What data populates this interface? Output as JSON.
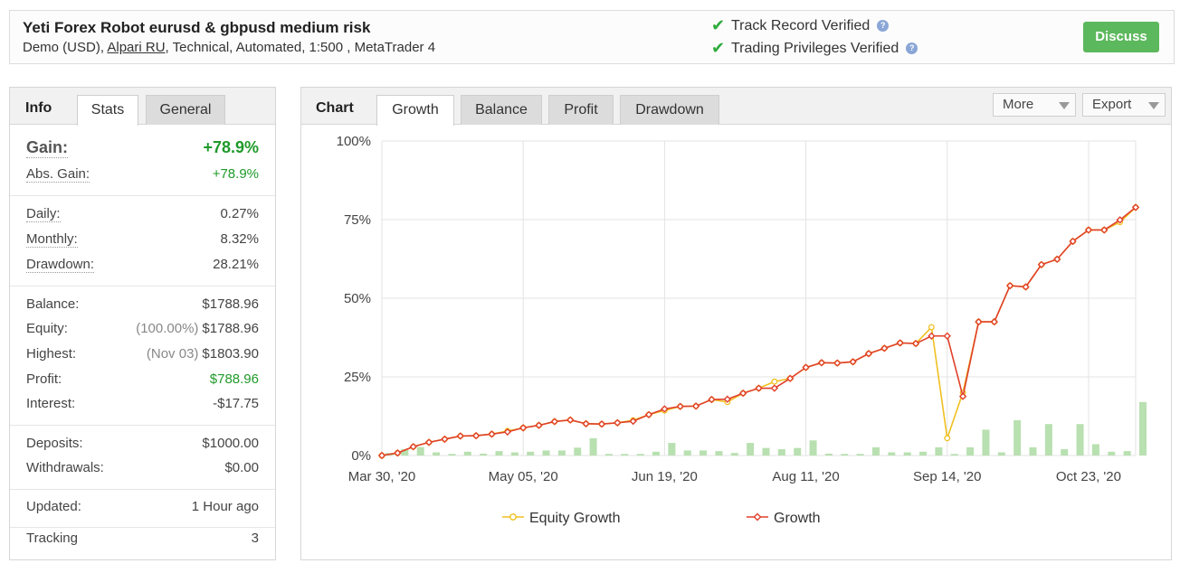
{
  "header": {
    "title": "Yeti Forex Robot eurusd & gbpusd medium risk",
    "subtitle_pre": "Demo (USD), ",
    "broker": "Alpari RU",
    "subtitle_post": ", Technical, Automated, 1:500 , MetaTrader 4",
    "verified_track": "Track Record Verified",
    "verified_trading": "Trading Privileges Verified",
    "discuss_label": "Discuss"
  },
  "info": {
    "tab_head": "Info",
    "tabs": [
      "Stats",
      "General"
    ],
    "gain_label": "Gain:",
    "gain_value": "+78.9%",
    "abs_gain_label": "Abs. Gain:",
    "abs_gain_value": "+78.9%",
    "daily_label": "Daily:",
    "daily_value": "0.27%",
    "monthly_label": "Monthly:",
    "monthly_value": "8.32%",
    "drawdown_label": "Drawdown:",
    "drawdown_value": "28.21%",
    "balance_label": "Balance:",
    "balance_value": "$1788.96",
    "equity_label": "Equity:",
    "equity_pre": "(100.00%)",
    "equity_value": "$1788.96",
    "highest_label": "Highest:",
    "highest_pre": "(Nov 03)",
    "highest_value": "$1803.90",
    "profit_label": "Profit:",
    "profit_value": "$788.96",
    "interest_label": "Interest:",
    "interest_value": "-$17.75",
    "deposits_label": "Deposits:",
    "deposits_value": "$1000.00",
    "withdrawals_label": "Withdrawals:",
    "withdrawals_value": "$0.00",
    "updated_label": "Updated:",
    "updated_value": "1 Hour ago",
    "tracking_label": "Tracking",
    "tracking_value": "3"
  },
  "chart_panel": {
    "tab_head": "Chart",
    "tabs": [
      "Growth",
      "Balance",
      "Profit",
      "Drawdown"
    ],
    "more_label": "More",
    "export_label": "Export"
  },
  "colors": {
    "growth": "#e0402a",
    "equity": "#f0c020",
    "bars": "#b8e0b0",
    "positive": "#1f9a2a",
    "discuss": "#5cb85c"
  },
  "chart_data": {
    "type": "line",
    "ylim": [
      0,
      100
    ],
    "y_ticks": [
      "0%",
      "25%",
      "50%",
      "75%",
      "100%"
    ],
    "x_tick_labels": [
      "Mar 30, '20",
      "May 05, '20",
      "Jun 19, '20",
      "Aug 11, '20",
      "Sep 14, '20",
      "Oct 23, '20"
    ],
    "x_tick_index": [
      0,
      9,
      18,
      27,
      36,
      45
    ],
    "legend": [
      "Equity Growth",
      "Growth"
    ],
    "legend_position": "bottom",
    "grid": true,
    "series": [
      {
        "name": "Growth",
        "values": [
          0,
          0.8,
          2.8,
          4.2,
          5.2,
          6.2,
          6.3,
          6.8,
          7.5,
          8.8,
          9.6,
          10.8,
          11.3,
          10.1,
          10.0,
          10.4,
          10.9,
          13.0,
          14.8,
          15.6,
          15.7,
          17.8,
          17.9,
          19.8,
          21.4,
          21.4,
          24.5,
          28.0,
          29.5,
          29.4,
          29.8,
          32.4,
          34.1,
          35.8,
          35.6,
          38.0,
          38.0,
          18.8,
          42.5,
          42.5,
          54.0,
          53.6,
          60.7,
          62.4,
          68.1,
          71.7,
          71.7,
          74.9,
          78.9
        ]
      },
      {
        "name": "Equity Growth",
        "values": [
          0,
          0.8,
          2.8,
          4.2,
          5.2,
          6.2,
          6.3,
          6.8,
          7.8,
          8.8,
          9.6,
          10.8,
          11.3,
          10.1,
          10.0,
          10.4,
          11.2,
          13.0,
          14.3,
          15.6,
          15.7,
          17.8,
          17.0,
          19.8,
          21.4,
          23.5,
          24.5,
          28.0,
          29.5,
          29.4,
          29.8,
          32.4,
          34.1,
          35.8,
          35.6,
          40.8,
          5.5,
          20.0,
          42.5,
          42.5,
          54.0,
          53.6,
          60.7,
          62.4,
          68.1,
          71.7,
          71.7,
          74.2,
          78.9
        ]
      },
      {
        "name": "Bars",
        "values": [
          0.8,
          2.0,
          2.7,
          1.0,
          0.5,
          1.2,
          0.6,
          1.4,
          1.0,
          1.2,
          1.6,
          1.6,
          2.5,
          5.5,
          0.5,
          0.5,
          0.5,
          1.2,
          4.0,
          1.6,
          1.6,
          1.4,
          0.8,
          4.0,
          2.4,
          2.0,
          2.4,
          4.8,
          0.6,
          0.5,
          0.5,
          2.6,
          1.0,
          1.0,
          1.2,
          2.6,
          0.5,
          2.6,
          8.2,
          1.0,
          11.2,
          2.6,
          10.0,
          2.0,
          10.0,
          3.6,
          1.2,
          1.4,
          17.0
        ]
      }
    ]
  }
}
